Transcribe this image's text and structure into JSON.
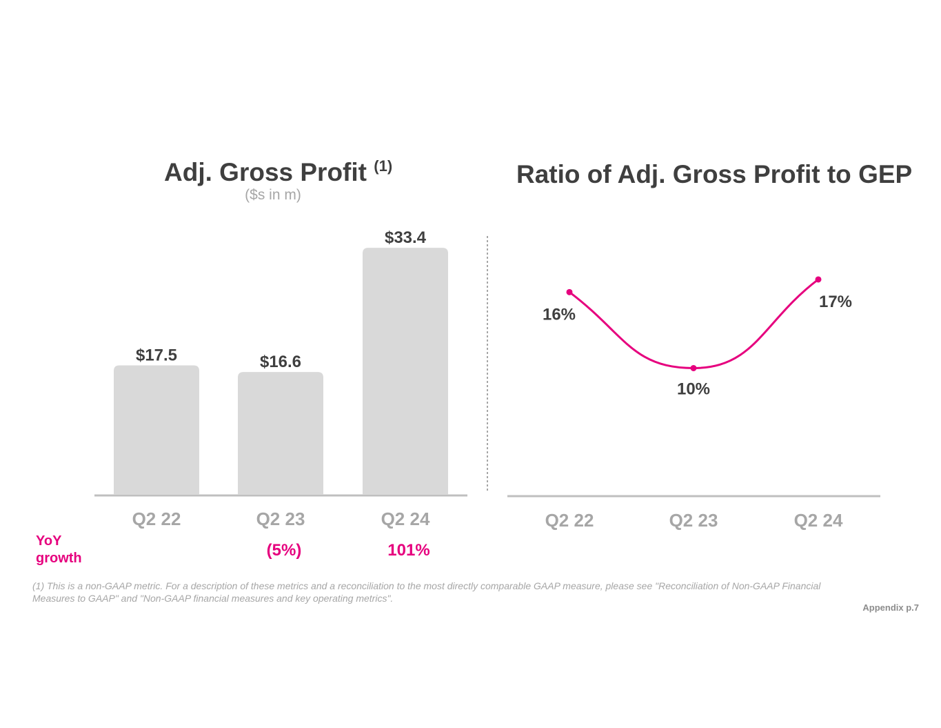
{
  "left_chart": {
    "title": "Adj. Gross Profit",
    "title_superscript": "(1)",
    "subtitle": "($s in m)"
  },
  "right_chart": {
    "title": "Ratio of Adj. Gross Profit to GEP"
  },
  "yoy": {
    "label_line1": "YoY",
    "label_line2": "growth",
    "values": [
      "",
      "(5%)",
      "101%"
    ]
  },
  "footnote_line1": "(1) This is a non-GAAP metric. For a description of these metrics and a reconciliation to the most directly comparable GAAP measure, please see \"Reconciliation of Non-GAAP Financial",
  "footnote_line2": "Measures to GAAP\" and \"Non-GAAP financial measures and key operating metrics\".",
  "page_label": "Appendix p.7",
  "colors": {
    "bar": "#d9d9d9",
    "axis": "#bfbfbf",
    "accent": "#e6007e",
    "label": "#3f3f3f",
    "tick": "#a6a6a6"
  },
  "chart_data": [
    {
      "type": "bar",
      "title": "Adj. Gross Profit (1)",
      "subtitle": "($s in m)",
      "categories": [
        "Q2 22",
        "Q2 23",
        "Q2 24"
      ],
      "values": [
        17.5,
        16.6,
        33.4
      ],
      "data_labels": [
        "$17.5",
        "$16.6",
        "$33.4"
      ],
      "ylim": [
        0,
        35
      ],
      "xlabel": "",
      "ylabel": "",
      "grid": false
    },
    {
      "type": "line",
      "title": "Ratio of Adj. Gross Profit to GEP",
      "categories": [
        "Q2 22",
        "Q2 23",
        "Q2 24"
      ],
      "values": [
        16,
        10,
        17
      ],
      "data_labels": [
        "16%",
        "10%",
        "17%"
      ],
      "ylim": [
        0,
        31
      ],
      "xlabel": "",
      "ylabel": "",
      "grid": false
    }
  ]
}
